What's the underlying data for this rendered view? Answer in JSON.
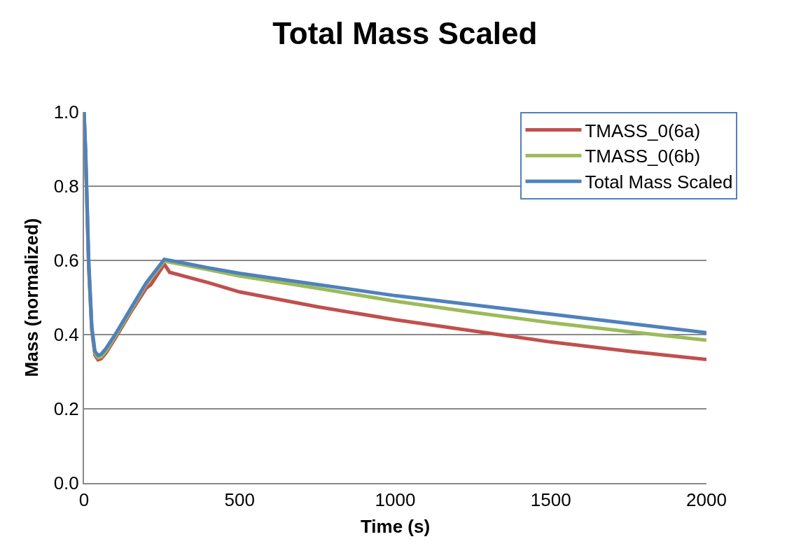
{
  "chart_data": {
    "type": "line",
    "title": "Total Mass Scaled",
    "xlabel": "Time (s)",
    "ylabel": "Mass (normalized)",
    "xlim": [
      0,
      2000
    ],
    "xticks": [
      0,
      500,
      1000,
      1500,
      2000
    ],
    "ylim": [
      0,
      1
    ],
    "yticks": [
      {
        "value": 0,
        "label": "0.0"
      },
      {
        "value": 0.2,
        "label": "0.2"
      },
      {
        "value": 0.4,
        "label": "0.4"
      },
      {
        "value": 0.6,
        "label": "0.6"
      },
      {
        "value": 0.8,
        "label": "0.8"
      },
      {
        "value": 1,
        "label": "1.0"
      }
    ],
    "grid": "y",
    "legend": "top right",
    "marker": "none",
    "line_style": "solid",
    "series": [
      {
        "name": "TMASS_0(6a)",
        "color": "#c0504d",
        "x": [
          0,
          5,
          15,
          25,
          35,
          45,
          55,
          70,
          100,
          150,
          200,
          215,
          258,
          275,
          400,
          500,
          750,
          1000,
          1250,
          1500,
          1750,
          2000
        ],
        "values": [
          1.0,
          0.88,
          0.58,
          0.41,
          0.345,
          0.332,
          0.335,
          0.35,
          0.39,
          0.46,
          0.525,
          0.535,
          0.59,
          0.568,
          0.54,
          0.515,
          0.475,
          0.44,
          0.41,
          0.38,
          0.355,
          0.333
        ]
      },
      {
        "name": "TMASS_0(6b)",
        "color": "#9bbb59",
        "x": [
          0,
          5,
          15,
          25,
          35,
          45,
          55,
          70,
          100,
          150,
          200,
          258,
          400,
          500,
          750,
          1000,
          1250,
          1500,
          1750,
          2000
        ],
        "values": [
          1.0,
          0.89,
          0.59,
          0.415,
          0.35,
          0.338,
          0.34,
          0.355,
          0.395,
          0.465,
          0.535,
          0.598,
          0.575,
          0.558,
          0.525,
          0.49,
          0.46,
          0.432,
          0.408,
          0.385
        ]
      },
      {
        "name": "Total Mass Scaled",
        "color": "#4f81bd",
        "x": [
          0,
          5,
          15,
          25,
          35,
          45,
          55,
          70,
          100,
          150,
          200,
          258,
          400,
          500,
          750,
          1000,
          1250,
          1500,
          1750,
          2000
        ],
        "values": [
          1.0,
          0.9,
          0.6,
          0.42,
          0.355,
          0.344,
          0.347,
          0.362,
          0.4,
          0.47,
          0.54,
          0.603,
          0.58,
          0.565,
          0.535,
          0.505,
          0.48,
          0.455,
          0.43,
          0.405
        ]
      }
    ]
  }
}
